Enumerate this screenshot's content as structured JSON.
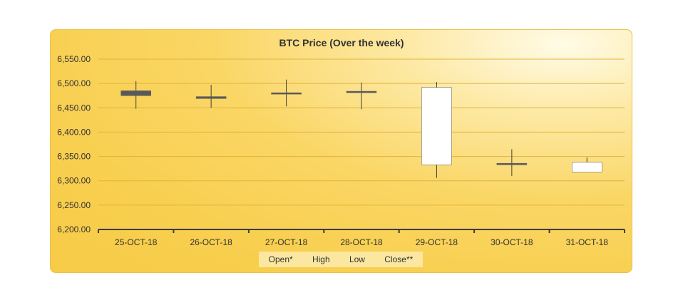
{
  "chart_data": {
    "type": "candlestick",
    "title": "BTC Price (Over the week)",
    "xlabel": "",
    "ylabel": "",
    "ylim": [
      6200,
      6550
    ],
    "y_ticks": [
      "6,200.00",
      "6,250.00",
      "6,300.00",
      "6,350.00",
      "6,400.00",
      "6,450.00",
      "6,500.00",
      "6,550.00"
    ],
    "y_tick_values": [
      6200,
      6250,
      6300,
      6350,
      6400,
      6450,
      6500,
      6550
    ],
    "categories": [
      "25-OCT-18",
      "26-OCT-18",
      "27-OCT-18",
      "28-OCT-18",
      "29-OCT-18",
      "30-OCT-18",
      "31-OCT-18"
    ],
    "series": [
      {
        "name": "Open*",
        "values": [
          6485,
          6473,
          6481,
          6484,
          6333,
          6336,
          6318
        ]
      },
      {
        "name": "High",
        "values": [
          6505,
          6497,
          6508,
          6502,
          6503,
          6365,
          6348
        ]
      },
      {
        "name": "Low",
        "values": [
          6448,
          6450,
          6453,
          6447,
          6306,
          6310,
          6318
        ]
      },
      {
        "name": "Close**",
        "values": [
          6475,
          6469,
          6479,
          6482,
          6492,
          6333,
          6338
        ]
      }
    ],
    "legend": [
      "Open*",
      "High",
      "Low",
      "Close**"
    ],
    "colors": {
      "rising": "#ffffff",
      "falling": "#595959",
      "wick": "#404040",
      "grid": "#e0b43c"
    }
  }
}
